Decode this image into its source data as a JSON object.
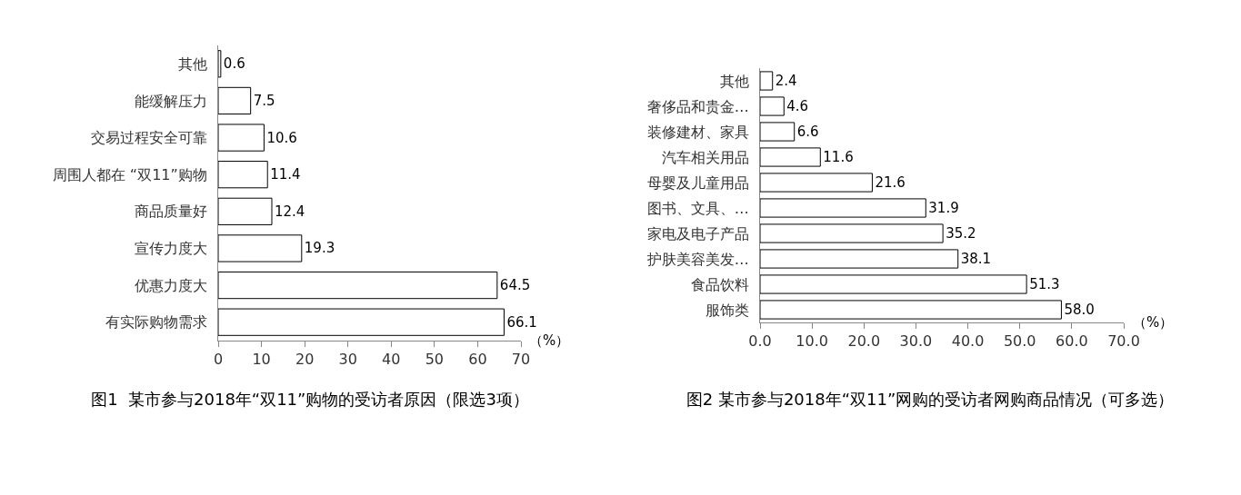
{
  "chart_data": [
    {
      "type": "bar",
      "orientation": "horizontal",
      "title": "图1  某市参与2018年“双11”购物的受访者原因（限选3项）",
      "xlabel": "（%）",
      "categories": [
        "其他",
        "能缓解压力",
        "交易过程安全可靠",
        "周围人都在 “双11”购物",
        "商品质量好",
        "宣传力度大",
        "优惠力度大",
        "有实际购物需求"
      ],
      "values": [
        0.6,
        7.5,
        10.6,
        11.4,
        12.4,
        19.3,
        64.5,
        66.1
      ],
      "color": "#ffffff",
      "data_labels": true,
      "xlim": [
        0,
        70
      ],
      "xticks": [
        0,
        10,
        20,
        30,
        40,
        50,
        60,
        70
      ]
    },
    {
      "type": "bar",
      "orientation": "horizontal",
      "title": "图2 某市参与2018年“双11”网购的受访者网购商品情况（可多选）",
      "xlabel": "（%）",
      "categories": [
        "其他",
        "奢侈品和贵金…",
        "装修建材、家具",
        "汽车相关用品",
        "母婴及儿童用品",
        "图书、文具、…",
        "家电及电子产品",
        "护肤美容美发…",
        "食品饮料",
        "服饰类"
      ],
      "values": [
        2.4,
        4.6,
        6.6,
        11.6,
        21.6,
        31.9,
        35.2,
        38.1,
        51.3,
        58.0
      ],
      "color": "#ffffff",
      "value_labels": [
        "2.4",
        "4.6",
        "6.6",
        "11.6",
        "21.6",
        "31.9",
        "35.2",
        "38.1",
        "51.3",
        "58.0"
      ],
      "xlim": [
        0,
        70
      ],
      "xticks": [
        {
          "value": 0,
          "label": "0.0"
        },
        {
          "value": 10,
          "label": "10.0"
        },
        {
          "value": 20,
          "label": "20.0"
        },
        {
          "value": 30,
          "label": "30.0"
        },
        {
          "value": 40,
          "label": "40.0"
        },
        {
          "value": 50,
          "label": "50.0"
        },
        {
          "value": 60,
          "label": "60.0"
        },
        {
          "value": 70,
          "label": "70.0"
        }
      ]
    }
  ]
}
